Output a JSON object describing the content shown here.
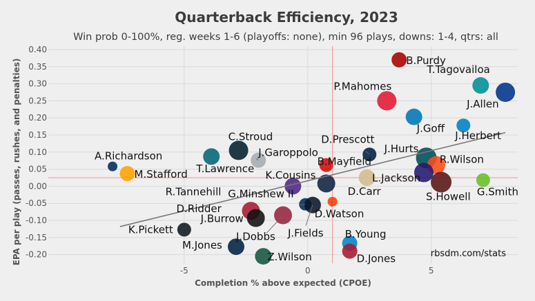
{
  "chart_data": {
    "type": "scatter",
    "title": "Quarterback Efficiency, 2023",
    "subtitle": "Win prob 0-100%, reg. weeks 1-6 (playoffs: none), min 96 plays, downs: 1-4, qtrs: all",
    "xlabel": "Completion % above expected (CPOE)",
    "ylabel": "EPA per play (passes, rushes, and penalties)",
    "credit": "rbsdm.com/stats",
    "xlim": [
      -10.5,
      8.5
    ],
    "ylim": [
      -0.225,
      0.41
    ],
    "x_ticks": [
      -5,
      0,
      5
    ],
    "y_ticks": [
      -0.2,
      -0.15,
      -0.1,
      -0.05,
      0.0,
      0.05,
      0.1,
      0.15,
      0.2,
      0.25,
      0.3,
      0.35,
      0.4
    ],
    "y_tick_labels": [
      "-0.20",
      "-0.15",
      "-0.10",
      "-0.05",
      "0.00",
      "0.05",
      "0.10",
      "0.15",
      "0.20",
      "0.25",
      "0.30",
      "0.35",
      "0.40"
    ],
    "mean_x": 1.0,
    "mean_y": 0.025,
    "trendline": {
      "x0": -7.6,
      "y0": -0.118,
      "x1": 8.0,
      "y1": 0.157
    },
    "points": [
      {
        "name": "B.Purdy",
        "x": 3.7,
        "y": 0.37,
        "color": "#aa0000",
        "size": 11,
        "label": "B.Purdy"
      },
      {
        "name": "T.Tagovailoa",
        "x": 7.0,
        "y": 0.295,
        "color": "#008e97",
        "size": 12,
        "label": "T.Tagovailoa"
      },
      {
        "name": "J.Allen",
        "x": 8.0,
        "y": 0.275,
        "color": "#00338d",
        "size": 14,
        "label": "J.Allen"
      },
      {
        "name": "P.Mahomes",
        "x": 3.2,
        "y": 0.25,
        "color": "#e31837",
        "size": 14,
        "label": "P.Mahomes"
      },
      {
        "name": "J.Goff",
        "x": 4.3,
        "y": 0.203,
        "color": "#0076b6",
        "size": 12,
        "label": "J.Goff"
      },
      {
        "name": "J.Herbert",
        "x": 6.3,
        "y": 0.178,
        "color": "#0080c6",
        "size": 10,
        "label": "J.Herbert"
      },
      {
        "name": "C.Stroud",
        "x": -2.8,
        "y": 0.105,
        "color": "#03202f",
        "size": 14,
        "label": "C.Stroud"
      },
      {
        "name": "J.Garoppolo",
        "x": -2.0,
        "y": 0.076,
        "color": "#a5acaf",
        "size": 11,
        "label": "J.Garoppolo"
      },
      {
        "name": "T.Lawrence",
        "x": -3.9,
        "y": 0.087,
        "color": "#006778",
        "size": 12,
        "label": "T.Lawrence"
      },
      {
        "name": "D.Prescott",
        "x": 2.5,
        "y": 0.093,
        "color": "#041e42",
        "size": 10,
        "label": "D.Prescott"
      },
      {
        "name": "J.Hurts",
        "x": 4.8,
        "y": 0.083,
        "color": "#004c54",
        "size": 15,
        "label": "J.Hurts"
      },
      {
        "name": "R.Wilson",
        "x": 5.2,
        "y": 0.062,
        "color": "#fb4f14",
        "size": 13,
        "label": "R.Wilson"
      },
      {
        "name": "B.Mayfield",
        "x": 0.75,
        "y": 0.062,
        "color": "#d50a0a",
        "size": 10,
        "label": "B.Mayfield"
      },
      {
        "name": "A.Richardson",
        "x": -7.9,
        "y": 0.058,
        "color": "#002c5f",
        "size": 7,
        "label": "A.Richardson"
      },
      {
        "name": "M.Stafford",
        "x": -7.3,
        "y": 0.037,
        "color": "#ffa300",
        "size": 11,
        "label": "M.Stafford"
      },
      {
        "name": "L.Jackson",
        "x": 4.7,
        "y": 0.04,
        "color": "#241773",
        "size": 14,
        "label": "L.Jackson"
      },
      {
        "name": "D.Carr",
        "x": 2.4,
        "y": 0.025,
        "color": "#d3bc8d",
        "size": 12,
        "label": "D.Carr"
      },
      {
        "name": "S.Howell",
        "x": 5.4,
        "y": 0.012,
        "color": "#5a1414",
        "size": 15,
        "label": "S.Howell"
      },
      {
        "name": "G.Smith",
        "x": 7.1,
        "y": 0.018,
        "color": "#69be28",
        "size": 10,
        "label": "G.Smith"
      },
      {
        "name": "K.Cousins",
        "x": -0.6,
        "y": 0.0,
        "color": "#4f2683",
        "size": 12,
        "label": "K.Cousins"
      },
      {
        "name": "R.Tannehill",
        "x": 0.75,
        "y": 0.008,
        "color": "#0c2340",
        "size": 13,
        "label": "R.Tannehill"
      },
      {
        "name": "D.Watson",
        "x": 1.0,
        "y": -0.045,
        "color": "#ff3c00",
        "size": 7,
        "label": "D.Watson"
      },
      {
        "name": "G.Minshew II",
        "x": -0.1,
        "y": -0.053,
        "color": "#002c5f",
        "size": 9,
        "label": "G.Minshew II"
      },
      {
        "name": "J.Fields",
        "x": 0.2,
        "y": -0.055,
        "color": "#0b162a",
        "size": 12,
        "label": "J.Fields"
      },
      {
        "name": "D.Ridder",
        "x": -2.3,
        "y": -0.072,
        "color": "#a71930",
        "size": 13,
        "label": "D.Ridder"
      },
      {
        "name": "J.Burrow",
        "x": -2.1,
        "y": -0.093,
        "color": "#111111",
        "size": 13,
        "label": "J.Burrow"
      },
      {
        "name": "K.Pickett",
        "x": -5.0,
        "y": -0.127,
        "color": "#101820",
        "size": 10,
        "label": "K.Pickett"
      },
      {
        "name": "J.Dobbs",
        "x": -1.0,
        "y": -0.085,
        "color": "#97233f",
        "size": 13,
        "label": "J.Dobbs"
      },
      {
        "name": "M.Jones",
        "x": -2.9,
        "y": -0.177,
        "color": "#002244",
        "size": 12,
        "label": "M.Jones"
      },
      {
        "name": "Z.Wilson",
        "x": -1.8,
        "y": -0.205,
        "color": "#125740",
        "size": 12,
        "label": "Z.Wilson"
      },
      {
        "name": "B.Young",
        "x": 1.7,
        "y": -0.167,
        "color": "#0085ca",
        "size": 11,
        "label": "B.Young"
      },
      {
        "name": "D.Jones",
        "x": 1.7,
        "y": -0.19,
        "color": "#a71930",
        "size": 11,
        "label": "D.Jones"
      }
    ]
  }
}
